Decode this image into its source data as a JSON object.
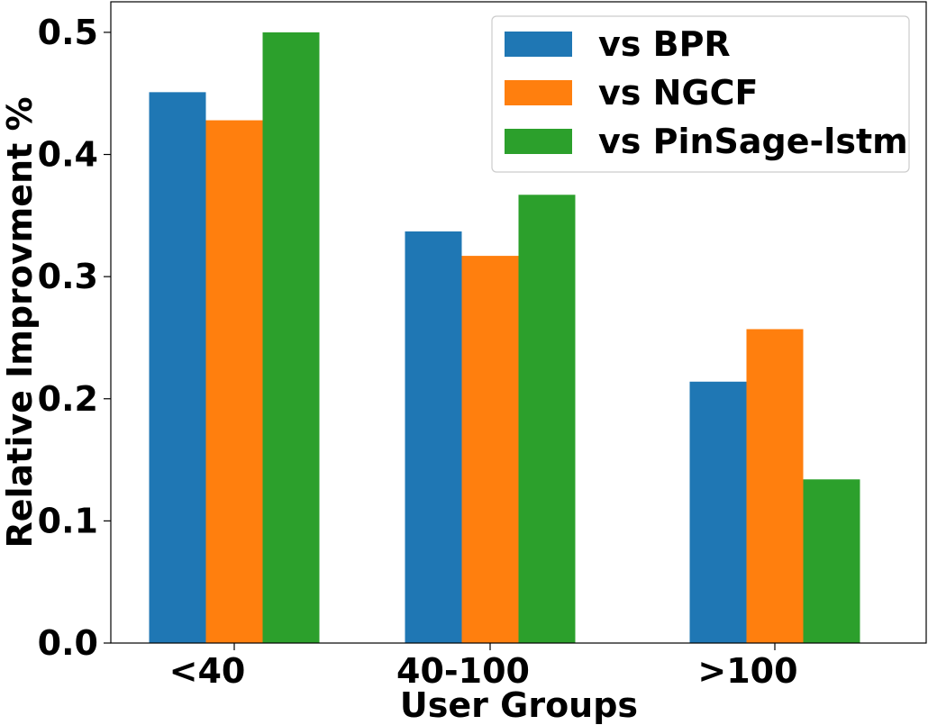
{
  "chart_data": {
    "type": "bar",
    "title": "",
    "xlabel": "User Groups",
    "ylabel": "Relative Improvment %",
    "categories": [
      "<40",
      "40-100",
      ">100"
    ],
    "series": [
      {
        "name": "vs BPR",
        "color": "#1f77b4",
        "values": [
          0.451,
          0.337,
          0.214
        ]
      },
      {
        "name": "vs NGCF",
        "color": "#ff7f0e",
        "values": [
          0.428,
          0.317,
          0.257
        ]
      },
      {
        "name": "vs PinSage-lstm",
        "color": "#2ca02c",
        "values": [
          0.5,
          0.367,
          0.134
        ]
      }
    ],
    "ylim": [
      0,
      0.525
    ],
    "yticks": [
      0.0,
      0.1,
      0.2,
      0.3,
      0.4,
      0.5
    ],
    "ytick_labels": [
      "0.0",
      "0.1",
      "0.2",
      "0.3",
      "0.4",
      "0.5"
    ],
    "grid": false,
    "legend_position": "top-right"
  }
}
